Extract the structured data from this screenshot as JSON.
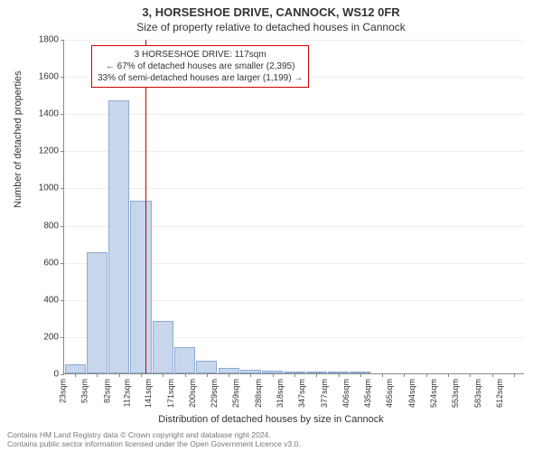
{
  "header": {
    "title_line1": "3, HORSESHOE DRIVE, CANNOCK, WS12 0FR",
    "title_line2": "Size of property relative to detached houses in Cannock"
  },
  "chart": {
    "type": "histogram",
    "ylabel": "Number of detached properties",
    "xlabel": "Distribution of detached houses by size in Cannock",
    "ylim": [
      0,
      1800
    ],
    "ytick_step": 200,
    "bar_fill": "#c8d6ec",
    "bar_stroke": "#8faad3",
    "background_color": "#ffffff",
    "grid_color": "#eeeeee",
    "axis_color": "#888888",
    "marker_color": "#cc0000",
    "marker_x_value": 117,
    "x_categories": [
      "23sqm",
      "53sqm",
      "82sqm",
      "112sqm",
      "141sqm",
      "171sqm",
      "200sqm",
      "229sqm",
      "259sqm",
      "288sqm",
      "318sqm",
      "347sqm",
      "377sqm",
      "406sqm",
      "435sqm",
      "465sqm",
      "494sqm",
      "524sqm",
      "553sqm",
      "583sqm",
      "612sqm"
    ],
    "values": [
      50,
      650,
      1470,
      930,
      280,
      140,
      70,
      30,
      20,
      15,
      12,
      10,
      10,
      10,
      0,
      0,
      0,
      0,
      0,
      0,
      0
    ],
    "x_start": 23,
    "x_step": 29.45
  },
  "info_box": {
    "line1": "3 HORSESHOE DRIVE: 117sqm",
    "line2": "← 67% of detached houses are smaller (2,395)",
    "line3": "33% of semi-detached houses are larger (1,199) →"
  },
  "footer": {
    "line1": "Contains HM Land Registry data © Crown copyright and database right 2024.",
    "line2": "Contains public sector information licensed under the Open Government Licence v3.0."
  }
}
